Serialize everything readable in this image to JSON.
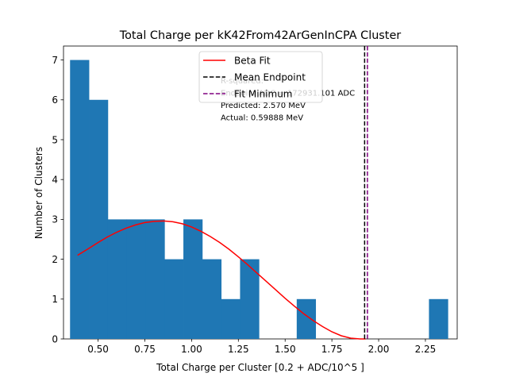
{
  "chart_data": {
    "type": "bar",
    "title": "Total Charge per kK42From42ArGenInCPA Cluster",
    "xlabel": "Total Charge per Cluster [0.2 + ADC/10^5 ]",
    "ylabel": "Number of Clusters",
    "xlim": [
      0.315,
      2.42
    ],
    "ylim": [
      0,
      7.35
    ],
    "xticks": [
      0.5,
      0.75,
      1.0,
      1.25,
      1.5,
      1.75,
      2.0,
      2.25
    ],
    "xtick_labels": [
      "0.50",
      "0.75",
      "1.00",
      "1.25",
      "1.50",
      "1.75",
      "2.00",
      "2.25"
    ],
    "yticks": [
      0,
      1,
      2,
      3,
      4,
      5,
      6,
      7
    ],
    "ytick_labels": [
      "0",
      "1",
      "2",
      "3",
      "4",
      "5",
      "6",
      "7"
    ],
    "bar_color": "#1f77b4",
    "histogram": {
      "bin_edges": [
        0.35,
        0.451,
        0.552,
        0.653,
        0.754,
        0.855,
        0.956,
        1.057,
        1.158,
        1.259,
        1.36,
        1.461,
        1.562,
        1.663,
        1.764,
        1.865,
        1.966,
        2.067,
        2.168,
        2.269,
        2.37
      ],
      "counts": [
        7,
        6,
        3,
        3,
        3,
        2,
        3,
        2,
        1,
        2,
        0,
        0,
        1,
        0,
        0,
        0,
        0,
        0,
        0,
        1
      ]
    },
    "series": [
      {
        "name": "Beta Fit",
        "color": "#ff0000",
        "x": [
          0.39,
          0.45,
          0.5,
          0.55,
          0.6,
          0.65,
          0.7,
          0.75,
          0.8,
          0.85,
          0.9,
          0.95,
          1.0,
          1.05,
          1.1,
          1.15,
          1.2,
          1.25,
          1.3,
          1.35,
          1.4,
          1.45,
          1.5,
          1.55,
          1.6,
          1.65,
          1.7,
          1.75,
          1.8,
          1.85,
          1.9,
          1.93
        ],
        "y": [
          2.1,
          2.27,
          2.42,
          2.56,
          2.68,
          2.78,
          2.86,
          2.92,
          2.95,
          2.96,
          2.94,
          2.89,
          2.81,
          2.7,
          2.57,
          2.42,
          2.25,
          2.06,
          1.86,
          1.65,
          1.44,
          1.23,
          1.02,
          0.82,
          0.63,
          0.46,
          0.31,
          0.18,
          0.08,
          0.02,
          0.0,
          0.0
        ]
      }
    ],
    "vlines": [
      {
        "name": "Mean Endpoint",
        "x": 1.925,
        "color": "#000000",
        "style": "dashed"
      },
      {
        "name": "Fit Minimum",
        "x": 1.94,
        "color": "#800080",
        "style": "dashed"
      }
    ],
    "legend": {
      "placement": "top-center",
      "entries": [
        {
          "label": "Beta Fit",
          "color": "#ff0000",
          "style": "solid"
        },
        {
          "label": "Mean Endpoint",
          "color": "#000000",
          "style": "dashed"
        },
        {
          "label": "Fit Minimum",
          "color": "#800080",
          "style": "dashed"
        }
      ]
    },
    "annotations": [
      "R-squared:",
      "Endpoint ADC = 172931.101 ADC",
      "Predicted: 2.570 MeV",
      "Actual: 0.59888 MeV"
    ]
  }
}
